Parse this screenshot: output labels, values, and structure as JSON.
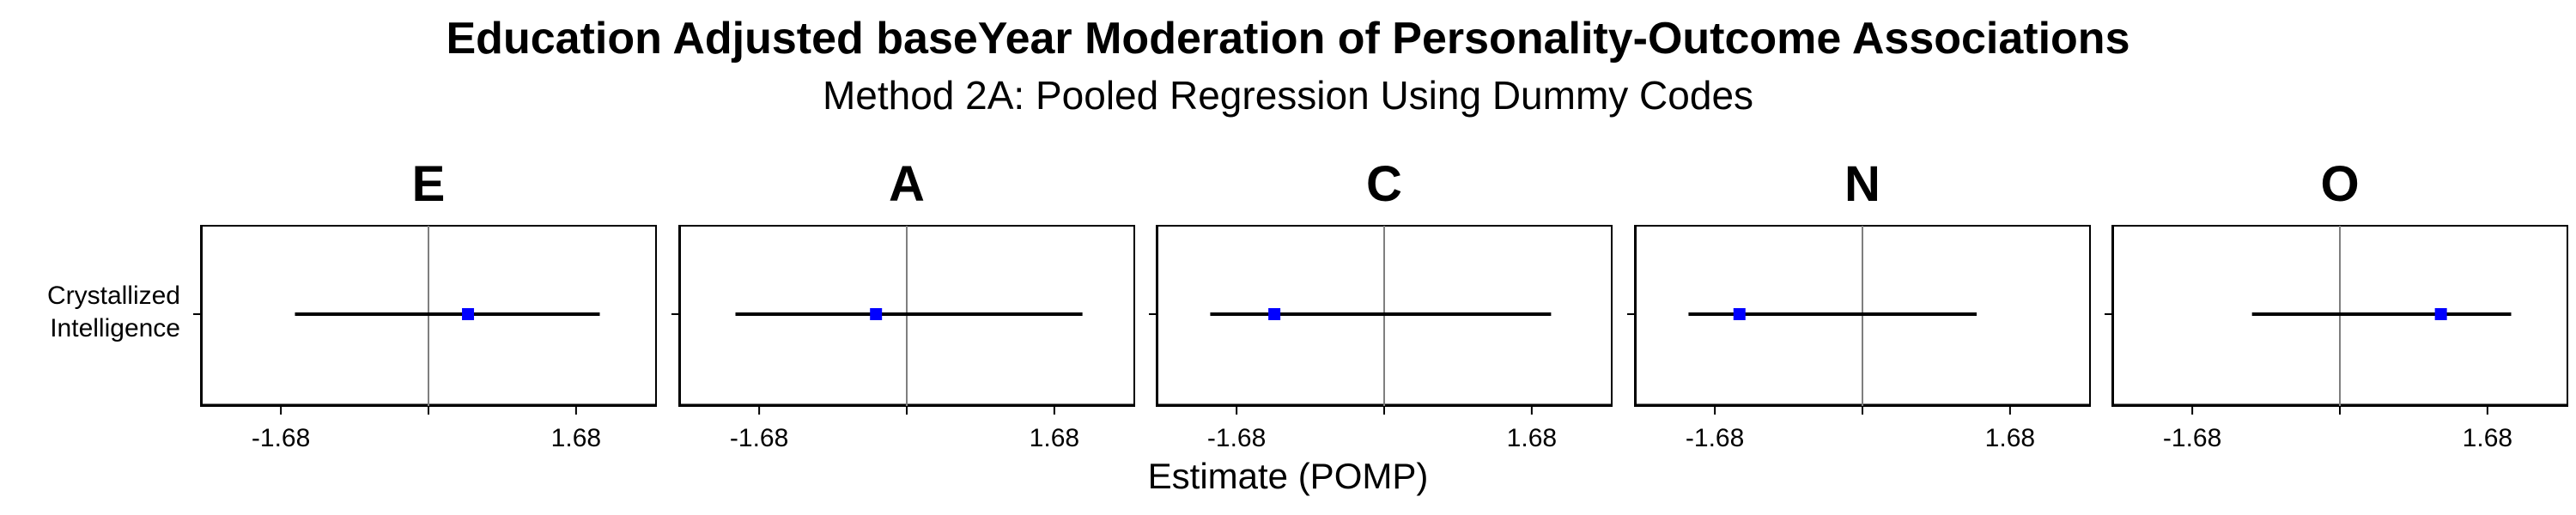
{
  "chart_data": {
    "type": "forest",
    "title": "Education Adjusted baseYear Moderation of Personality-Outcome Associations",
    "subtitle": "Method 2A: Pooled Regression Using Dummy Codes",
    "xlabel": "Estimate (POMP)",
    "ylabel": "",
    "row_labels": [
      "Crystallized",
      "Intelligence"
    ],
    "xlim": [
      -2.6,
      2.6
    ],
    "xticks": [
      -1.68,
      0,
      1.68
    ],
    "xtick_labels": [
      "-1.68",
      "",
      "1.68"
    ],
    "reference_line": 0,
    "marker_color": "#0000ff",
    "panels": [
      {
        "name": "E",
        "estimate": 0.45,
        "ci_low": -1.52,
        "ci_high": 1.95
      },
      {
        "name": "A",
        "estimate": -0.35,
        "ci_low": -1.95,
        "ci_high": 2.0
      },
      {
        "name": "C",
        "estimate": -1.25,
        "ci_low": -1.98,
        "ci_high": 1.9
      },
      {
        "name": "N",
        "estimate": -1.4,
        "ci_low": -1.98,
        "ci_high": 1.3
      },
      {
        "name": "O",
        "estimate": 1.15,
        "ci_low": -1.0,
        "ci_high": 1.95
      }
    ]
  }
}
